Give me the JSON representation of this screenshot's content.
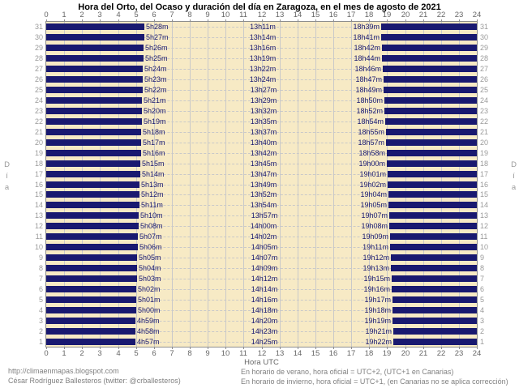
{
  "title": "Hora del Orto, del Ocaso y duración del día en Zaragoza, en el mes de agosto de 2021",
  "axis": {
    "x_label": "Hora UTC",
    "y_label": "Día",
    "hour_ticks": [
      0,
      1,
      2,
      3,
      4,
      5,
      6,
      7,
      8,
      9,
      10,
      11,
      12,
      13,
      14,
      15,
      16,
      17,
      18,
      19,
      20,
      21,
      22,
      23,
      24
    ]
  },
  "footer": {
    "left_line1": "http://climaenmapas.blogspot.com",
    "left_line2": "César Rodríguez Ballesteros (twitter: @crballesteros)",
    "right_line1": "En horario de verano, hora oficial = UTC+2, (UTC+1 en Canarias)",
    "right_line2": "En horario de invierno, hora oficial = UTC+1, (en Canarias no se aplica corrección)"
  },
  "colors": {
    "bar": "#191970",
    "plot_background": "#f7eac5",
    "grid": "#c9c9c9",
    "axis_text": "#666666",
    "day_text": "#9a9a9a",
    "time_label_text": "#191970",
    "footer_text": "#808080",
    "frame_border": "#8e8e8e"
  },
  "chart_data": {
    "type": "bar",
    "title": "Hora del Orto, del Ocaso y duración del día en Zaragoza, en el mes de agosto de 2021",
    "xlabel": "Hora UTC",
    "ylabel": "Día",
    "xlim": [
      0,
      24
    ],
    "x_ticks": [
      0,
      1,
      2,
      3,
      4,
      5,
      6,
      7,
      8,
      9,
      10,
      11,
      12,
      13,
      14,
      15,
      16,
      17,
      18,
      19,
      20,
      21,
      22,
      23,
      24
    ],
    "grid": true,
    "bars_meaning": "dark bars are night: 0h to orto (sunrise) and ocaso (sunset) to 24h; light gap is daylight",
    "days": [
      {
        "day": 31,
        "orto": "5h28m",
        "duracion": "13h11m",
        "ocaso": "18h39m"
      },
      {
        "day": 30,
        "orto": "5h27m",
        "duracion": "13h14m",
        "ocaso": "18h41m"
      },
      {
        "day": 29,
        "orto": "5h26m",
        "duracion": "13h16m",
        "ocaso": "18h42m"
      },
      {
        "day": 28,
        "orto": "5h25m",
        "duracion": "13h19m",
        "ocaso": "18h44m"
      },
      {
        "day": 27,
        "orto": "5h24m",
        "duracion": "13h22m",
        "ocaso": "18h46m"
      },
      {
        "day": 26,
        "orto": "5h23m",
        "duracion": "13h24m",
        "ocaso": "18h47m"
      },
      {
        "day": 25,
        "orto": "5h22m",
        "duracion": "13h27m",
        "ocaso": "18h49m"
      },
      {
        "day": 24,
        "orto": "5h21m",
        "duracion": "13h29m",
        "ocaso": "18h50m"
      },
      {
        "day": 23,
        "orto": "5h20m",
        "duracion": "13h32m",
        "ocaso": "18h52m"
      },
      {
        "day": 22,
        "orto": "5h19m",
        "duracion": "13h35m",
        "ocaso": "18h54m"
      },
      {
        "day": 21,
        "orto": "5h18m",
        "duracion": "13h37m",
        "ocaso": "18h55m"
      },
      {
        "day": 20,
        "orto": "5h17m",
        "duracion": "13h40m",
        "ocaso": "18h57m"
      },
      {
        "day": 19,
        "orto": "5h16m",
        "duracion": "13h42m",
        "ocaso": "18h58m"
      },
      {
        "day": 18,
        "orto": "5h15m",
        "duracion": "13h45m",
        "ocaso": "19h00m"
      },
      {
        "day": 17,
        "orto": "5h14m",
        "duracion": "13h47m",
        "ocaso": "19h01m"
      },
      {
        "day": 16,
        "orto": "5h13m",
        "duracion": "13h49m",
        "ocaso": "19h02m"
      },
      {
        "day": 15,
        "orto": "5h12m",
        "duracion": "13h52m",
        "ocaso": "19h04m"
      },
      {
        "day": 14,
        "orto": "5h11m",
        "duracion": "13h54m",
        "ocaso": "19h05m"
      },
      {
        "day": 13,
        "orto": "5h10m",
        "duracion": "13h57m",
        "ocaso": "19h07m"
      },
      {
        "day": 12,
        "orto": "5h08m",
        "duracion": "14h00m",
        "ocaso": "19h08m"
      },
      {
        "day": 11,
        "orto": "5h07m",
        "duracion": "14h02m",
        "ocaso": "19h09m"
      },
      {
        "day": 10,
        "orto": "5h06m",
        "duracion": "14h05m",
        "ocaso": "19h11m"
      },
      {
        "day": 9,
        "orto": "5h05m",
        "duracion": "14h07m",
        "ocaso": "19h12m"
      },
      {
        "day": 8,
        "orto": "5h04m",
        "duracion": "14h09m",
        "ocaso": "19h13m"
      },
      {
        "day": 7,
        "orto": "5h03m",
        "duracion": "14h12m",
        "ocaso": "19h15m"
      },
      {
        "day": 6,
        "orto": "5h02m",
        "duracion": "14h14m",
        "ocaso": "19h16m"
      },
      {
        "day": 5,
        "orto": "5h01m",
        "duracion": "14h16m",
        "ocaso": "19h17m"
      },
      {
        "day": 4,
        "orto": "5h00m",
        "duracion": "14h18m",
        "ocaso": "19h18m"
      },
      {
        "day": 3,
        "orto": "4h59m",
        "duracion": "14h20m",
        "ocaso": "19h19m"
      },
      {
        "day": 2,
        "orto": "4h58m",
        "duracion": "14h23m",
        "ocaso": "19h21m"
      },
      {
        "day": 1,
        "orto": "4h57m",
        "duracion": "14h25m",
        "ocaso": "19h22m"
      }
    ]
  }
}
